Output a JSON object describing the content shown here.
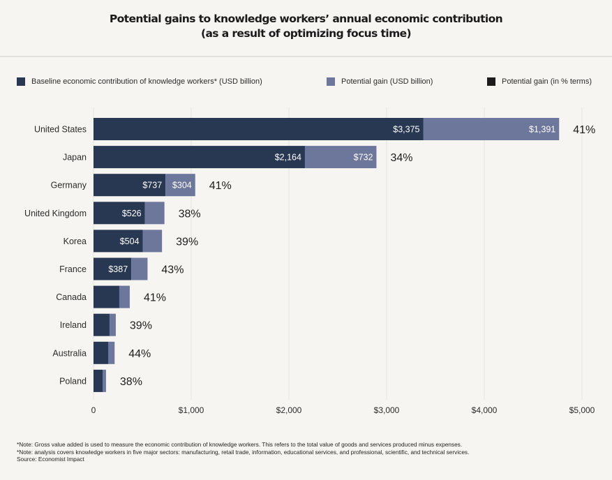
{
  "title_lines": [
    "Potential gains to knowledge workers’ annual economic contribution",
    "(as a result of optimizing focus time)"
  ],
  "legend": [
    {
      "label": "Baseline economic contribution of knowledge workers* (USD billion)",
      "color": "#283752"
    },
    {
      "label": "Potential gain (USD billion)",
      "color": "#6d769b"
    },
    {
      "label": "Potential gain (in % terms)",
      "color": "#1c1c1c"
    }
  ],
  "footnotes": [
    "*Note: Gross value added is used to measure the economic contribution of knowledge workers. This refers to the total value of goods and services produced minus expenses.",
    "*Note: analysis covers knowledge workers in five major sectors: manufacturing, retail trade, information, educational services, and professional, scientific, and technical services.",
    "Source: Economist Impact"
  ],
  "chart_data": {
    "type": "bar",
    "orientation": "horizontal",
    "stacked": true,
    "title": "Potential gains to knowledge workers’ annual economic contribution (as a result of optimizing focus time)",
    "xlabel": "",
    "ylabel": "",
    "xlim": [
      0,
      5000
    ],
    "x_ticks": [
      0,
      1000,
      2000,
      3000,
      4000,
      5000
    ],
    "x_tick_labels": [
      "0",
      "$1,000",
      "$2,000",
      "$3,000",
      "$4,000",
      "$5,000"
    ],
    "grid": "vertical",
    "legend_position": "top",
    "categories": [
      "United States",
      "Japan",
      "Germany",
      "United Kingdom",
      "Korea",
      "France",
      "Canada",
      "Ireland",
      "Australia",
      "Poland"
    ],
    "series": [
      {
        "name": "Baseline economic contribution of knowledge workers* (USD billion)",
        "color": "#283752",
        "values": [
          3375,
          2164,
          737,
          526,
          504,
          387,
          264,
          164,
          150,
          93
        ],
        "labels": [
          "$3,375",
          "$2,164",
          "$737",
          "$526",
          "$504",
          "$387",
          "",
          "",
          "",
          ""
        ]
      },
      {
        "name": "Potential gain (USD billion)",
        "color": "#6d769b",
        "values": [
          1391,
          732,
          304,
          200,
          197,
          166,
          107,
          64,
          66,
          35
        ],
        "labels": [
          "$1,391",
          "$732",
          "$304",
          "",
          "",
          "",
          "",
          "",
          "",
          ""
        ]
      }
    ],
    "percent_gain": {
      "name": "Potential gain (in % terms)",
      "labels": [
        "41%",
        "34%",
        "41%",
        "38%",
        "39%",
        "43%",
        "41%",
        "39%",
        "44%",
        "38%"
      ]
    }
  }
}
